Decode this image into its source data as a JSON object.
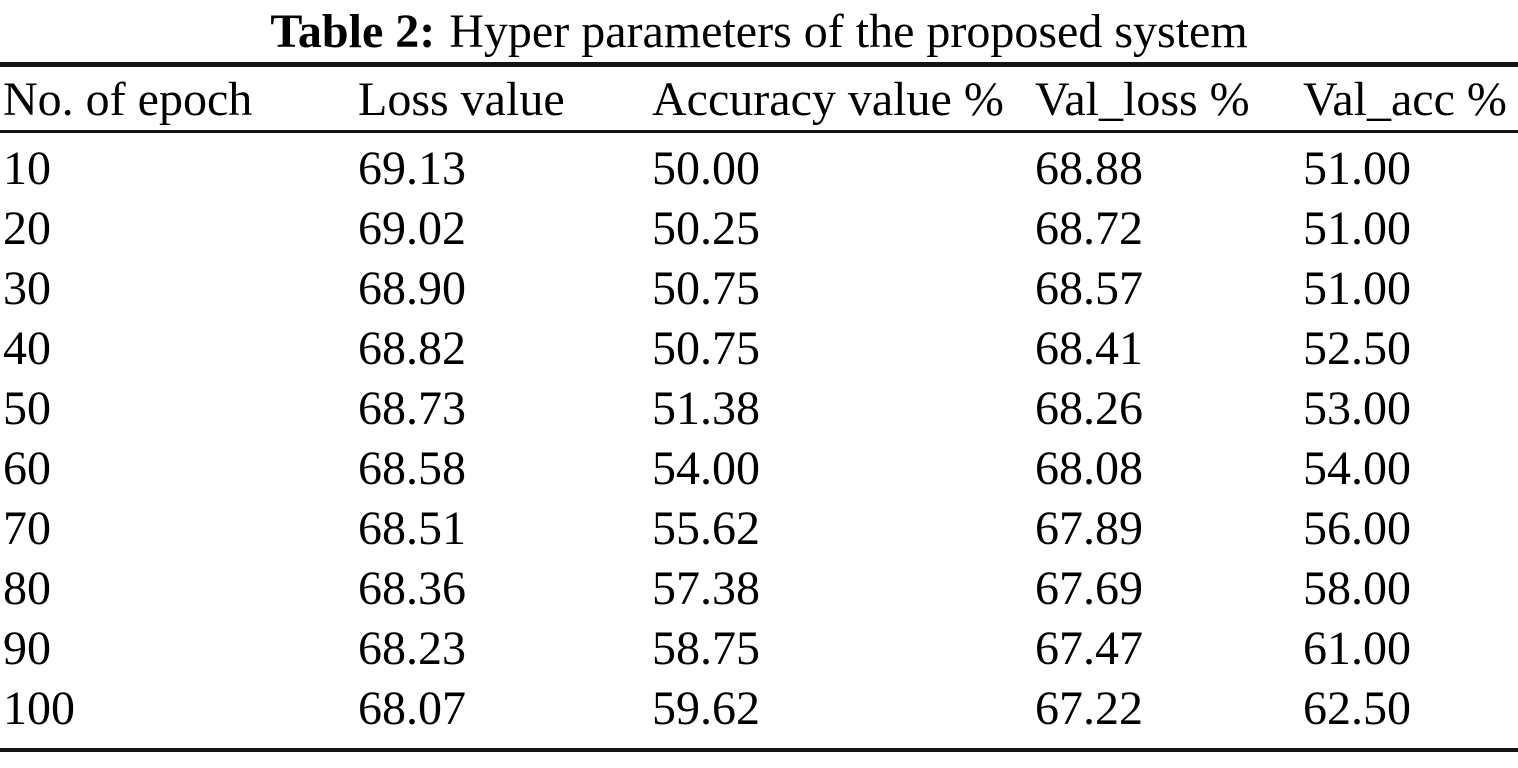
{
  "caption": {
    "label": "Table 2:",
    "text": "Hyper parameters of the proposed system"
  },
  "table": {
    "columns": [
      "No. of epoch",
      "Loss value",
      "Accuracy value %",
      "Val_loss %",
      "Val_acc %"
    ],
    "rows": [
      [
        "10",
        "69.13",
        "50.00",
        "68.88",
        "51.00"
      ],
      [
        "20",
        "69.02",
        "50.25",
        "68.72",
        "51.00"
      ],
      [
        "30",
        "68.90",
        "50.75",
        "68.57",
        "51.00"
      ],
      [
        "40",
        "68.82",
        "50.75",
        "68.41",
        "52.50"
      ],
      [
        "50",
        "68.73",
        "51.38",
        "68.26",
        "53.00"
      ],
      [
        "60",
        "68.58",
        "54.00",
        "68.08",
        "54.00"
      ],
      [
        "70",
        "68.51",
        "55.62",
        "67.89",
        "56.00"
      ],
      [
        "80",
        "68.36",
        "57.38",
        "67.69",
        "58.00"
      ],
      [
        "90",
        "68.23",
        "58.75",
        "67.47",
        "61.00"
      ],
      [
        "100",
        "68.07",
        "59.62",
        "67.22",
        "62.50"
      ]
    ]
  },
  "chart_data": {
    "type": "table",
    "title": "Table 2: Hyper parameters of the proposed system",
    "columns": [
      "No. of epoch",
      "Loss value",
      "Accuracy value %",
      "Val_loss %",
      "Val_acc %"
    ],
    "epochs": [
      10,
      20,
      30,
      40,
      50,
      60,
      70,
      80,
      90,
      100
    ],
    "series": [
      {
        "name": "Loss value",
        "values": [
          69.13,
          69.02,
          68.9,
          68.82,
          68.73,
          68.58,
          68.51,
          68.36,
          68.23,
          68.07
        ]
      },
      {
        "name": "Accuracy value %",
        "values": [
          50.0,
          50.25,
          50.75,
          50.75,
          51.38,
          54.0,
          55.62,
          57.38,
          58.75,
          59.62
        ]
      },
      {
        "name": "Val_loss %",
        "values": [
          68.88,
          68.72,
          68.57,
          68.41,
          68.26,
          68.08,
          67.89,
          67.69,
          67.47,
          67.22
        ]
      },
      {
        "name": "Val_acc %",
        "values": [
          51.0,
          51.0,
          51.0,
          52.5,
          53.0,
          54.0,
          56.0,
          58.0,
          61.0,
          62.5
        ]
      }
    ],
    "colors": {
      "text": "#000000",
      "rule": "#141414",
      "background": "#ffffff"
    }
  }
}
